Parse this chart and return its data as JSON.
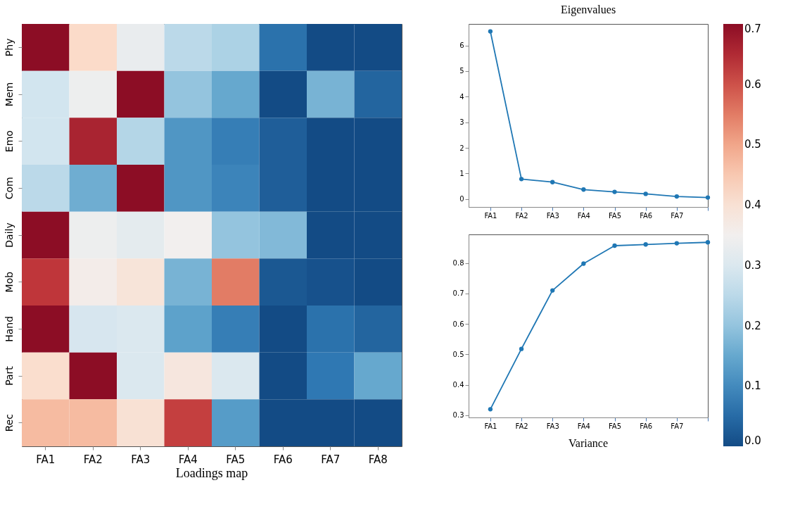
{
  "chart_data": [
    {
      "type": "heatmap",
      "title": "Loadings map",
      "categories": [
        "FA1",
        "FA2",
        "FA3",
        "FA4",
        "FA5",
        "FA6",
        "FA7",
        "FA8"
      ],
      "y_categories": [
        "Phy",
        "Mem",
        "Emo",
        "Com",
        "Daily",
        "Mob",
        "Hand",
        "Part",
        "Rec"
      ],
      "cells": [
        [
          0.7,
          0.42,
          0.33,
          0.25,
          0.23,
          0.06,
          0.0,
          0.0
        ],
        [
          0.28,
          0.34,
          0.7,
          0.2,
          0.15,
          0.0,
          0.17,
          0.04
        ],
        [
          0.28,
          0.66,
          0.24,
          0.12,
          0.08,
          0.03,
          0.0,
          0.0
        ],
        [
          0.25,
          0.16,
          0.7,
          0.12,
          0.09,
          0.03,
          0.0,
          0.0
        ],
        [
          0.7,
          0.34,
          0.32,
          0.35,
          0.2,
          0.18,
          0.0,
          0.0
        ],
        [
          0.63,
          0.36,
          0.39,
          0.17,
          0.55,
          0.02,
          0.01,
          0.0
        ],
        [
          0.7,
          0.29,
          0.3,
          0.14,
          0.08,
          0.0,
          0.06,
          0.04
        ],
        [
          0.41,
          0.7,
          0.3,
          0.38,
          0.3,
          0.0,
          0.07,
          0.15
        ],
        [
          0.47,
          0.47,
          0.4,
          0.62,
          0.13,
          0.0,
          0.0,
          0.0
        ]
      ],
      "clim": [
        0.0,
        0.7
      ],
      "cticks": [
        {
          "value": 0.0,
          "label": "0.0"
        },
        {
          "value": 0.1,
          "label": "0.1"
        },
        {
          "value": 0.2,
          "label": "0.2"
        },
        {
          "value": 0.3,
          "label": "0.3"
        },
        {
          "value": 0.4,
          "label": "0.4"
        },
        {
          "value": 0.5,
          "label": "0.5"
        },
        {
          "value": 0.6,
          "label": "0.6"
        },
        {
          "value": 0.7,
          "label": "0.7"
        }
      ]
    },
    {
      "type": "line",
      "title": "Eigenvalues",
      "categories": [
        "FA1",
        "FA2",
        "FA3",
        "FA4",
        "FA5",
        "FA6",
        "FA7",
        null
      ],
      "marker": "circle",
      "grid": false,
      "series": [
        {
          "color": "#1f77b4",
          "values": [
            6.55,
            0.78,
            0.66,
            0.37,
            0.28,
            0.2,
            0.1,
            0.06
          ]
        }
      ],
      "ylim": [
        -0.31,
        6.84
      ],
      "yticks": [
        0,
        1,
        2,
        3,
        4,
        5,
        6
      ]
    },
    {
      "type": "line",
      "title": "Variance",
      "categories": [
        "FA1",
        "FA2",
        "FA3",
        "FA4",
        "FA5",
        "FA6",
        "FA7",
        null
      ],
      "marker": "circle",
      "grid": false,
      "series": [
        {
          "color": "#1f77b4",
          "values": [
            0.32,
            0.518,
            0.71,
            0.798,
            0.857,
            0.861,
            0.865,
            0.868
          ]
        }
      ],
      "ylim": [
        0.293,
        0.894
      ],
      "yticks": [
        0.3,
        0.4,
        0.5,
        0.6,
        0.7,
        0.8
      ]
    }
  ]
}
